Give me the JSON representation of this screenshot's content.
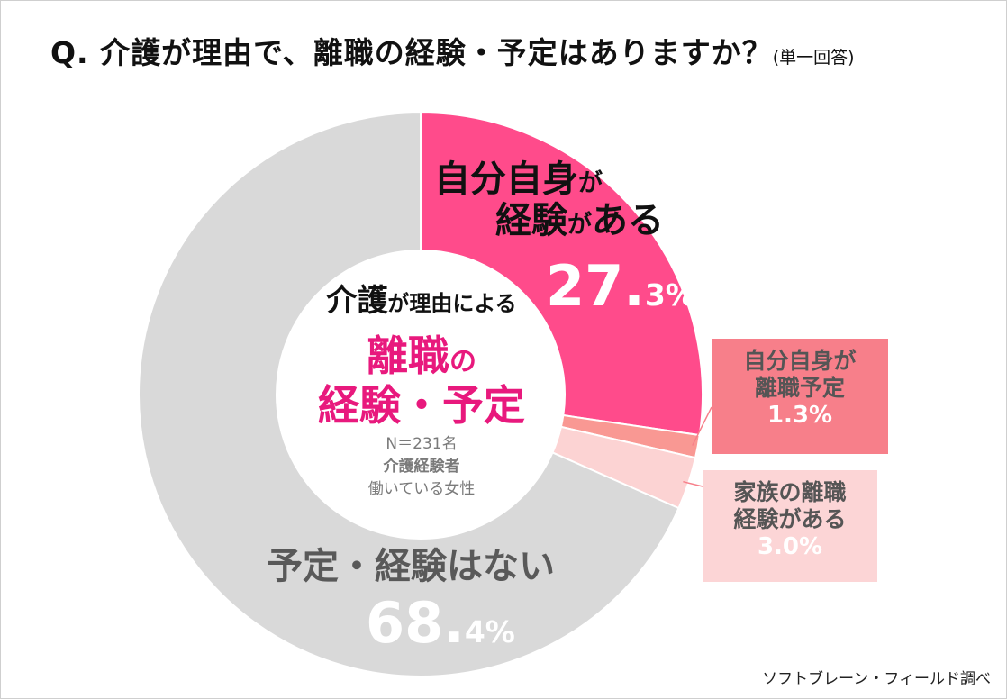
{
  "title": {
    "main": "Q.  介護が理由で、離職の経験・予定はありますか？",
    "sub": "(単一回答)"
  },
  "chart_data": {
    "type": "pie",
    "donut": true,
    "slices": [
      {
        "name": "自分自身が経験がある",
        "value": 27.3,
        "color": "#ff4b8b"
      },
      {
        "name": "自分自身が離職予定",
        "value": 1.3,
        "color": "#f99893"
      },
      {
        "name": "家族の離職経験がある",
        "value": 3.0,
        "color": "#fcd3d3"
      },
      {
        "name": "予定・経験はない",
        "value": 68.4,
        "color": "#d9d9d9"
      }
    ]
  },
  "labels": {
    "self_exp": {
      "l1a": "自分自身",
      "l1b": "が",
      "l2a": "経験",
      "l2b": "が",
      "l2c": "ある",
      "pct_int": "27.",
      "pct_dec": "3%"
    },
    "self_plan": {
      "l1": "自分自身が",
      "l2": "離職予定",
      "v": "1.3%"
    },
    "family": {
      "l1": "家族の離職",
      "l2": "経験がある",
      "v": "3.0%"
    },
    "none": {
      "l1": "予定・経験はない",
      "pct_int": "68.",
      "pct_dec": "4%"
    }
  },
  "center": {
    "l1a": "介護",
    "l1b": "が理由による",
    "l2a": "離職",
    "l2b": "の",
    "l3": "経験・予定",
    "n": "N＝231名",
    "who": "介護経験者",
    "cond": "働いている女性"
  },
  "credit": "ソフトブレーン・フィールド調べ"
}
